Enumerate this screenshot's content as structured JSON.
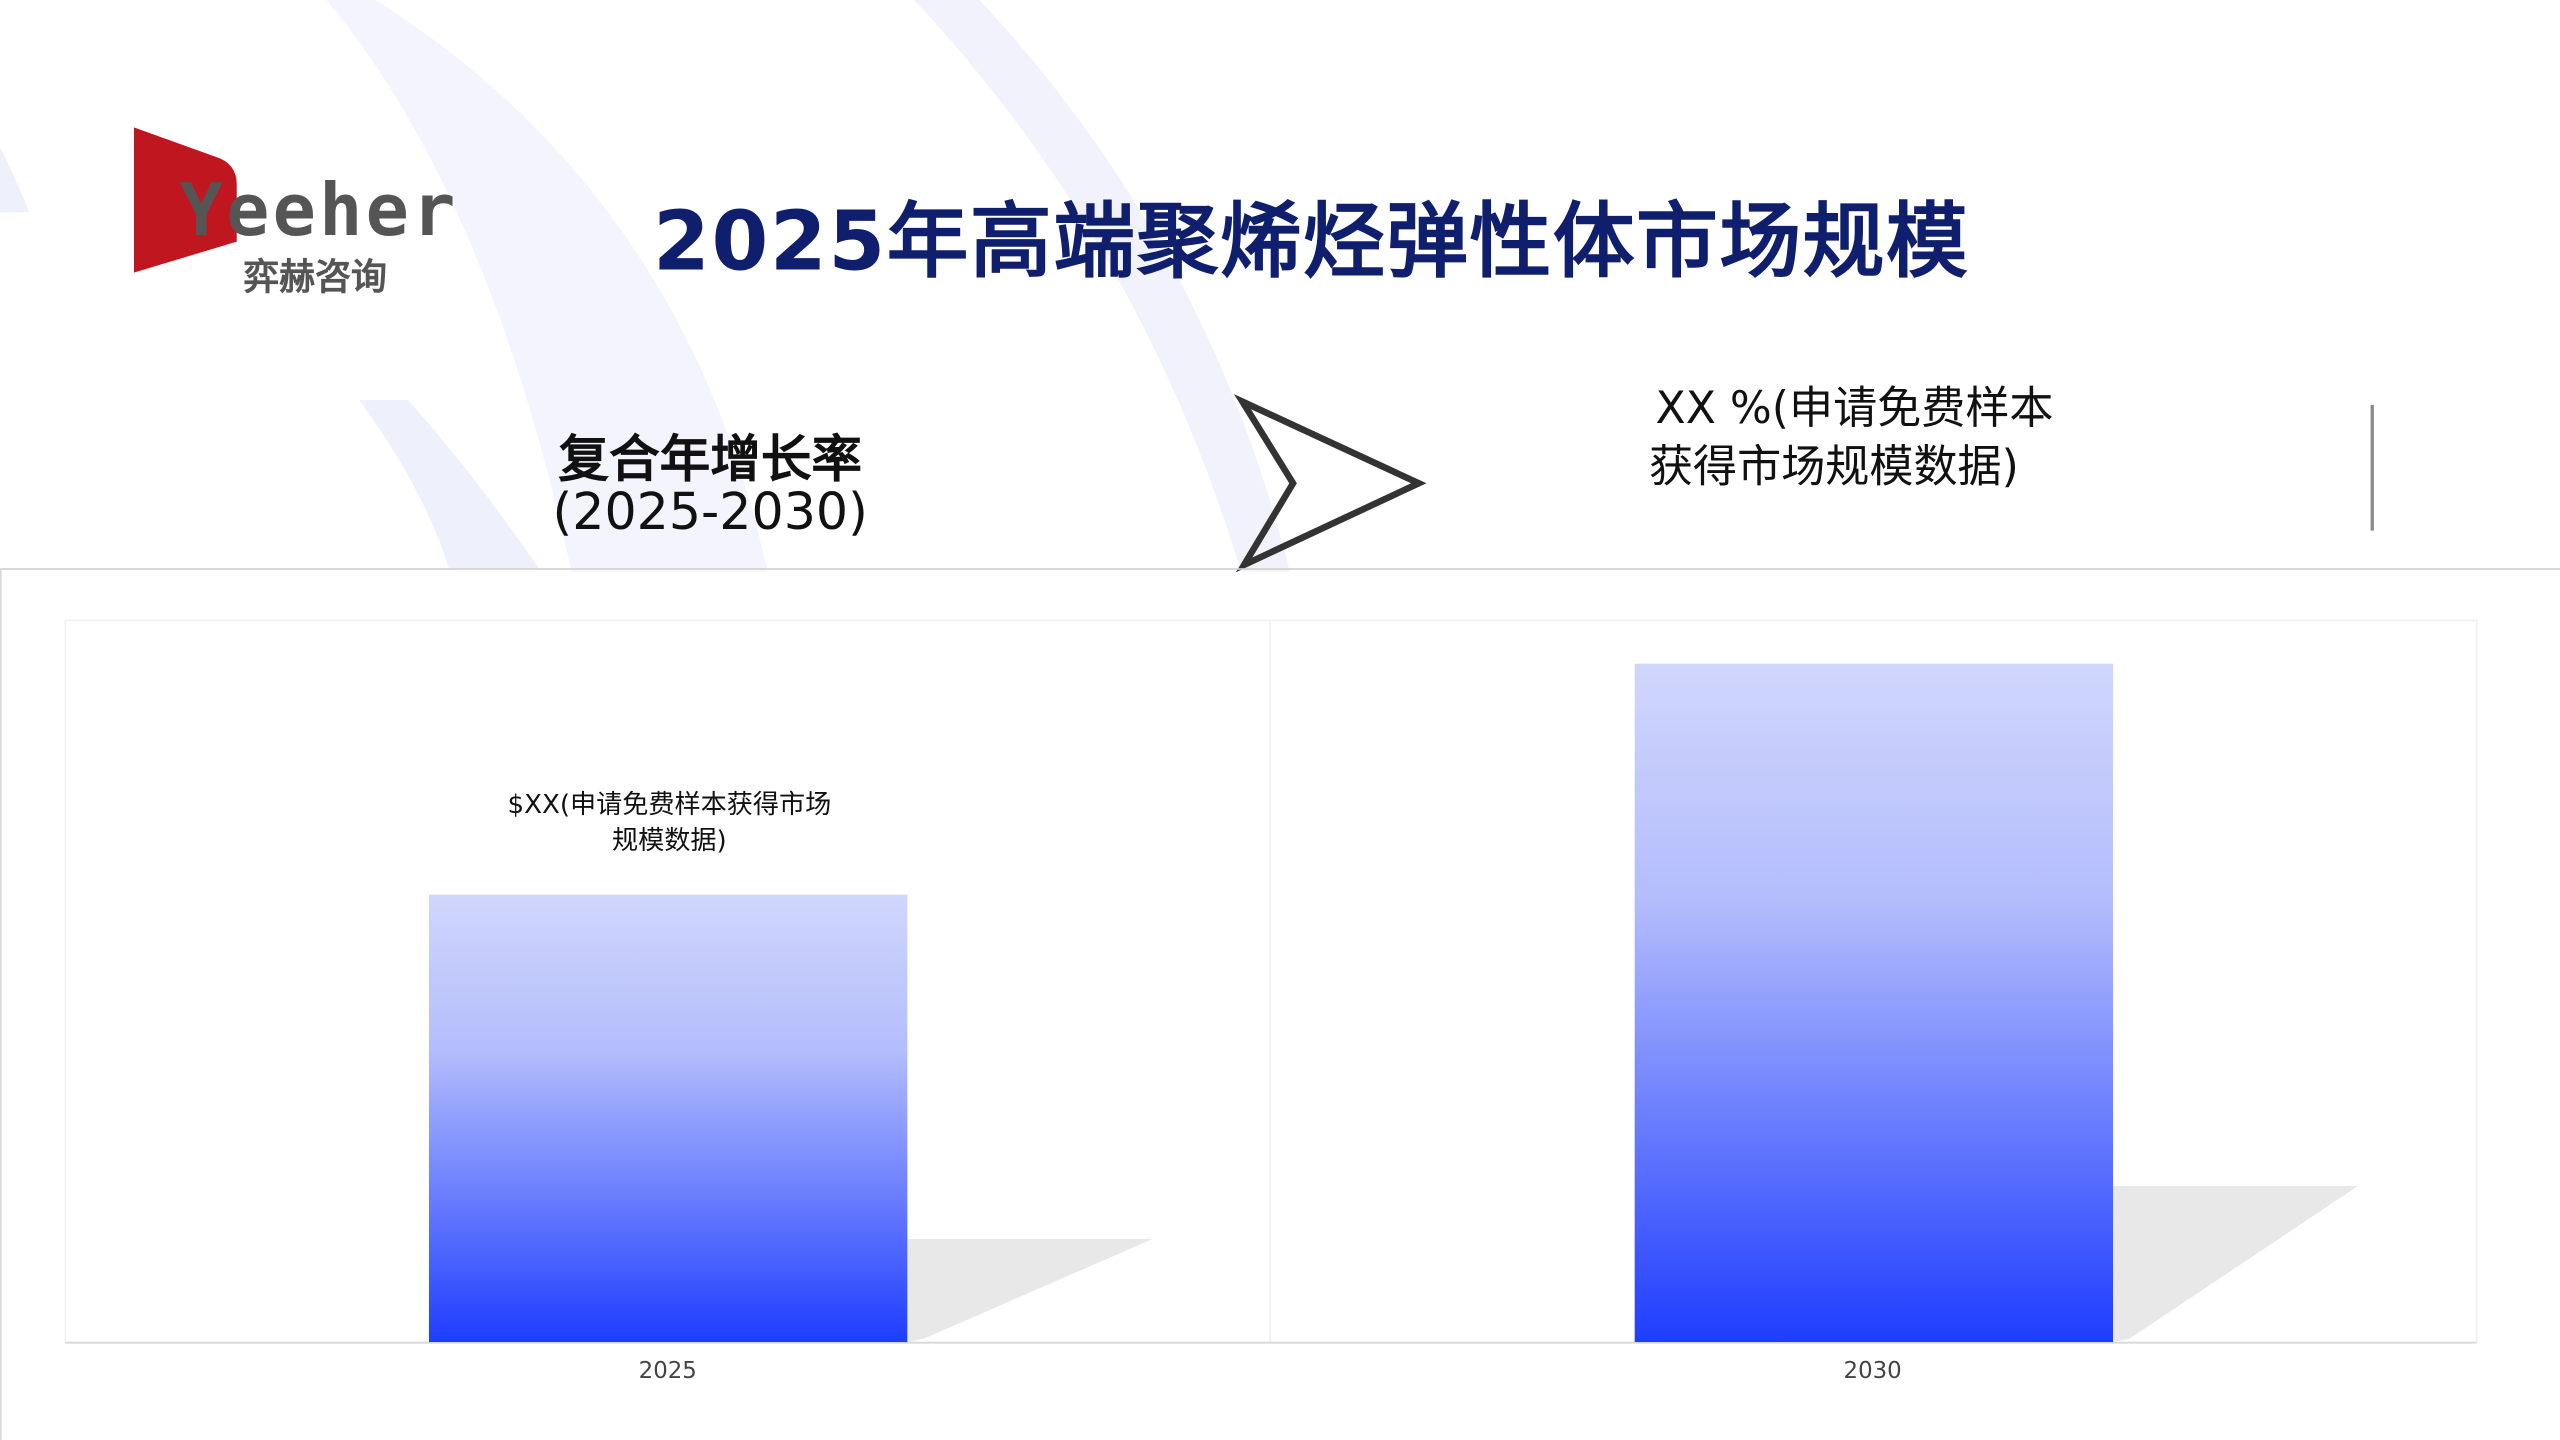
{
  "logo": {
    "brand": "Yeeher",
    "subtitle": "弈赫咨询",
    "colors": {
      "red": "#c0161f",
      "gray": "#555555"
    }
  },
  "title": "2025年高端聚烯烃弹性体市场规模",
  "cagr": {
    "label_line1": "复合年增长率",
    "label_line2": "(2025-2030)",
    "value_line1": "XX %(申请免费样本",
    "value_line2": "获得市场规模数据)",
    "arrow_icon": "chevron-arrow-right"
  },
  "colors": {
    "title": "#0f1f6e",
    "bar_top": "#d0d6fc",
    "bar_bottom": "#1f3dff",
    "shadow": "#e2e2e2"
  },
  "chart_data": {
    "type": "bar",
    "categories": [
      "2025",
      "2030"
    ],
    "values": [
      62,
      94
    ],
    "ylim": [
      0,
      100
    ],
    "data_labels": [
      "$XX(申请免费样本获得市场规模数据)",
      ""
    ],
    "data_label_lines": [
      "$XX(申请免费样本获得市场",
      "规模数据)"
    ],
    "grid": false,
    "xlabel": "",
    "ylabel": "",
    "title": ""
  }
}
